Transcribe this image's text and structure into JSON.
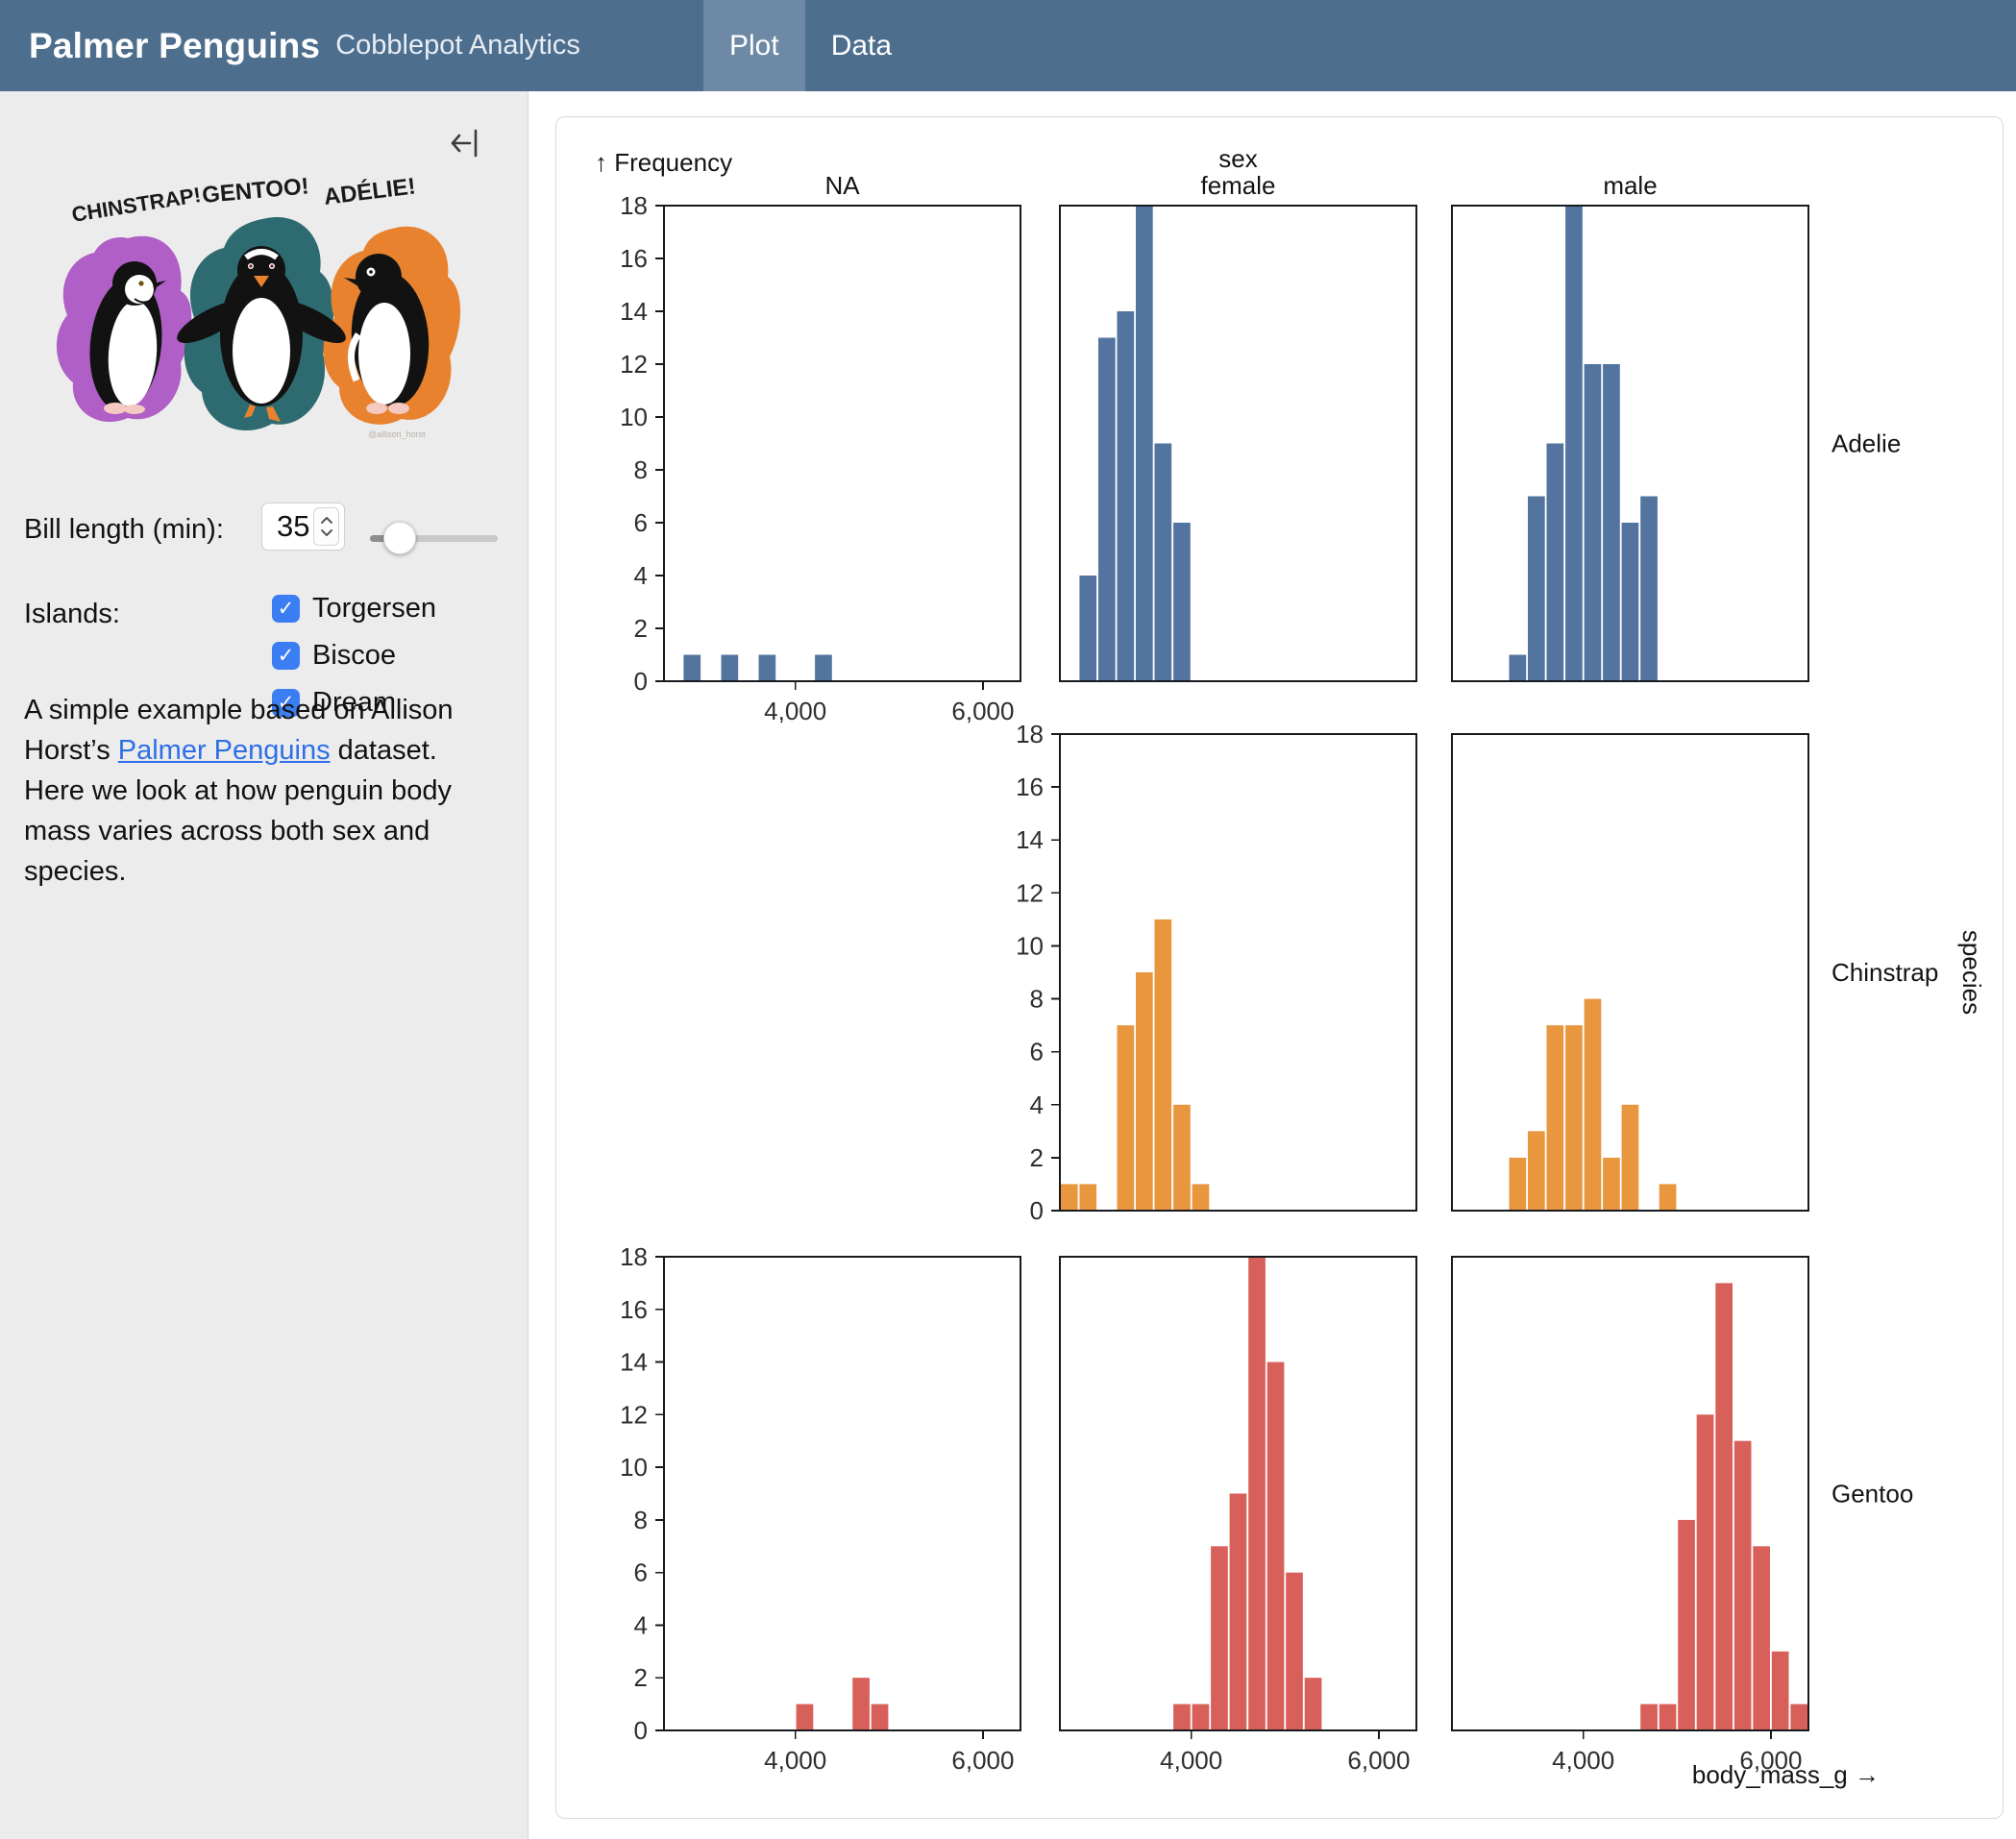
{
  "header": {
    "title": "Palmer Penguins",
    "subtitle": "Cobblepot Analytics",
    "tabs": [
      {
        "label": "Plot",
        "active": true
      },
      {
        "label": "Data",
        "active": false
      }
    ]
  },
  "sidebar": {
    "collapse_icon": "collapse-left-icon",
    "penguin_art": {
      "labels": [
        "CHINSTRAP!",
        "GENTOO!",
        "ADÉLIE!"
      ],
      "signature": "@allison_horst",
      "colors": {
        "chinstrap": "#b05fc6",
        "gentoo": "#2e6b70",
        "adelie": "#e8822f"
      }
    },
    "bill_length": {
      "label": "Bill length (min):",
      "value": "35"
    },
    "islands": {
      "label": "Islands:",
      "options": [
        {
          "label": "Torgersen",
          "checked": true
        },
        {
          "label": "Biscoe",
          "checked": true
        },
        {
          "label": "Dream",
          "checked": true
        }
      ]
    },
    "description": {
      "before_link": "A simple example based on Allison Horst’s ",
      "link_text": "Palmer Penguins",
      "after_link": " dataset. Here we look at how penguin body mass varies across both sex and species."
    }
  },
  "chart_data": {
    "type": "bar",
    "subtype": "faceted-histogram",
    "x_axis_title": "body_mass_g →",
    "y_axis_title": "↑ Frequency",
    "facet_col_title": "sex",
    "facet_row_title": "species",
    "columns": [
      "NA",
      "female",
      "male"
    ],
    "rows": [
      "Adelie",
      "Chinstrap",
      "Gentoo"
    ],
    "x_domain": [
      2600,
      6400
    ],
    "y_domain": [
      0,
      18
    ],
    "y_ticks": [
      0,
      2,
      4,
      6,
      8,
      10,
      12,
      14,
      16,
      18
    ],
    "x_ticks": [
      4000,
      6000
    ],
    "x_tick_labels": [
      "4,000",
      "6,000"
    ],
    "bin_width": 200,
    "grid": false,
    "colors": {
      "Adelie": "#53749e",
      "Chinstrap": "#e8973f",
      "Gentoo": "#d8605a"
    },
    "facets": [
      {
        "row": "Adelie",
        "col": "NA",
        "bins": [
          {
            "x0": 2800,
            "count": 1
          },
          {
            "x0": 3200,
            "count": 1
          },
          {
            "x0": 3600,
            "count": 1
          },
          {
            "x0": 4200,
            "count": 1
          }
        ]
      },
      {
        "row": "Adelie",
        "col": "female",
        "bins": [
          {
            "x0": 2800,
            "count": 4
          },
          {
            "x0": 3000,
            "count": 13
          },
          {
            "x0": 3200,
            "count": 14
          },
          {
            "x0": 3400,
            "count": 18
          },
          {
            "x0": 3600,
            "count": 9
          },
          {
            "x0": 3800,
            "count": 6
          }
        ]
      },
      {
        "row": "Adelie",
        "col": "male",
        "bins": [
          {
            "x0": 3200,
            "count": 1
          },
          {
            "x0": 3400,
            "count": 7
          },
          {
            "x0": 3600,
            "count": 9
          },
          {
            "x0": 3800,
            "count": 18
          },
          {
            "x0": 4000,
            "count": 12
          },
          {
            "x0": 4200,
            "count": 12
          },
          {
            "x0": 4400,
            "count": 6
          },
          {
            "x0": 4600,
            "count": 7
          }
        ]
      },
      {
        "row": "Chinstrap",
        "col": "female",
        "bins": [
          {
            "x0": 2600,
            "count": 1
          },
          {
            "x0": 2800,
            "count": 1
          },
          {
            "x0": 3200,
            "count": 7
          },
          {
            "x0": 3400,
            "count": 9
          },
          {
            "x0": 3600,
            "count": 11
          },
          {
            "x0": 3800,
            "count": 4
          },
          {
            "x0": 4000,
            "count": 1
          }
        ]
      },
      {
        "row": "Chinstrap",
        "col": "male",
        "bins": [
          {
            "x0": 3200,
            "count": 2
          },
          {
            "x0": 3400,
            "count": 3
          },
          {
            "x0": 3600,
            "count": 7
          },
          {
            "x0": 3800,
            "count": 7
          },
          {
            "x0": 4000,
            "count": 8
          },
          {
            "x0": 4200,
            "count": 2
          },
          {
            "x0": 4400,
            "count": 4
          },
          {
            "x0": 4800,
            "count": 1
          }
        ]
      },
      {
        "row": "Gentoo",
        "col": "NA",
        "bins": [
          {
            "x0": 4000,
            "count": 1
          },
          {
            "x0": 4600,
            "count": 2
          },
          {
            "x0": 4800,
            "count": 1
          }
        ]
      },
      {
        "row": "Gentoo",
        "col": "female",
        "bins": [
          {
            "x0": 3800,
            "count": 1
          },
          {
            "x0": 4000,
            "count": 1
          },
          {
            "x0": 4200,
            "count": 7
          },
          {
            "x0": 4400,
            "count": 9
          },
          {
            "x0": 4600,
            "count": 18
          },
          {
            "x0": 4800,
            "count": 14
          },
          {
            "x0": 5000,
            "count": 6
          },
          {
            "x0": 5200,
            "count": 2
          }
        ]
      },
      {
        "row": "Gentoo",
        "col": "male",
        "bins": [
          {
            "x0": 4600,
            "count": 1
          },
          {
            "x0": 4800,
            "count": 1
          },
          {
            "x0": 5000,
            "count": 8
          },
          {
            "x0": 5200,
            "count": 12
          },
          {
            "x0": 5400,
            "count": 17
          },
          {
            "x0": 5600,
            "count": 11
          },
          {
            "x0": 5800,
            "count": 7
          },
          {
            "x0": 6000,
            "count": 3
          },
          {
            "x0": 6200,
            "count": 1
          }
        ]
      }
    ],
    "x_axis_cells": [
      "Adelie|NA",
      "Gentoo|NA",
      "Gentoo|female",
      "Gentoo|male"
    ],
    "y_axis_cells": [
      "Adelie|NA",
      "Chinstrap|female",
      "Gentoo|NA"
    ]
  }
}
